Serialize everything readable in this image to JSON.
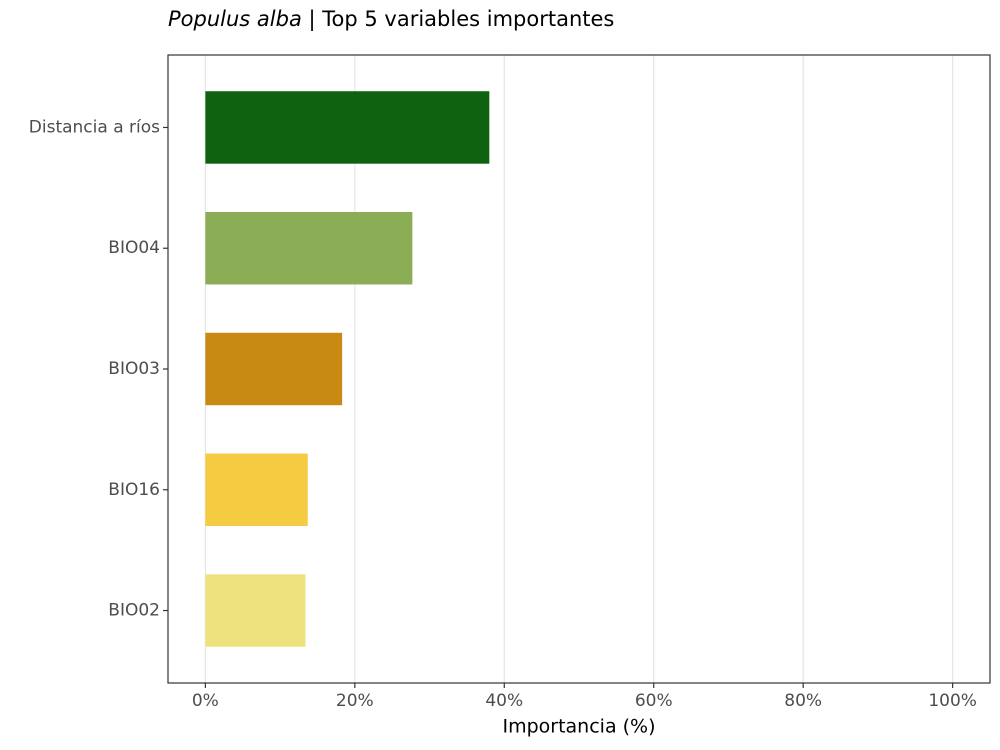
{
  "chart_data": {
    "type": "barh",
    "title": {
      "species": "Populus alba",
      "text": "| Top 5 variables importantes"
    },
    "x_label": "Importancia (%)",
    "categories": [
      "Distancia a ríos",
      "BIO04",
      "BIO03",
      "BIO16",
      "BIO02"
    ],
    "values": [
      38.0,
      27.7,
      18.3,
      13.7,
      13.4
    ],
    "colors": [
      "#0f620f",
      "#8aad55",
      "#c88a12",
      "#f5cb42",
      "#eee27e"
    ],
    "xlim": [
      -5,
      105
    ],
    "xticks": [
      {
        "value": 0,
        "label": "0%"
      },
      {
        "value": 20,
        "label": "20%"
      },
      {
        "value": 40,
        "label": "40%"
      },
      {
        "value": 60,
        "label": "60%"
      },
      {
        "value": 80,
        "label": "80%"
      },
      {
        "value": 100,
        "label": "100%"
      }
    ],
    "grid": true
  }
}
